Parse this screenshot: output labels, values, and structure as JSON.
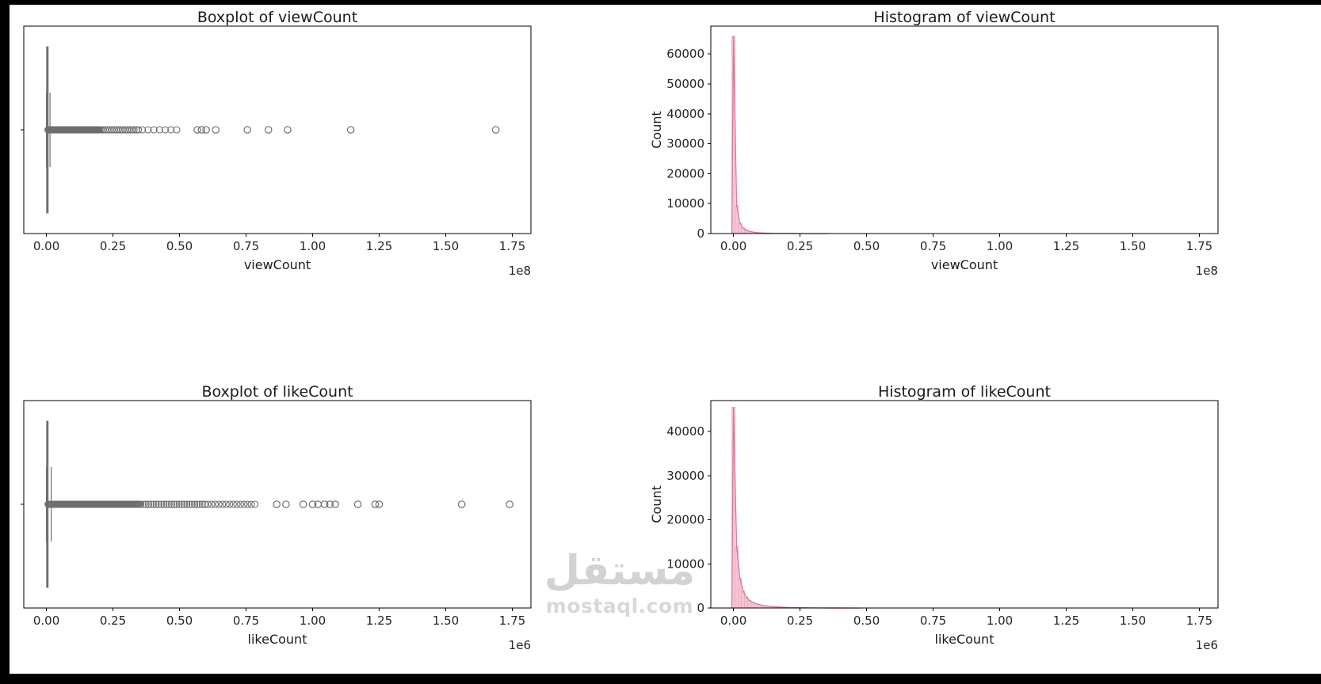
{
  "figure": {
    "watermark": {
      "logo_text": "مستقل",
      "site_text": "mostaql.com"
    }
  },
  "colors": {
    "hist_fill": "#f3bcca",
    "hist_edge": "#eaa6ba",
    "kde_line": "#d4708c",
    "box_color": "#6e6e6e",
    "axis_color": "#000000",
    "text_color": "#262626"
  },
  "chart_data": [
    {
      "id": "boxplot-viewcount",
      "type": "boxplot_h",
      "title": "Boxplot of viewCount",
      "xlabel": "viewCount",
      "offset_text": "1e8",
      "xlim": [
        -0.085,
        1.82
      ],
      "xticks": [
        0,
        0.25,
        0.5,
        0.75,
        1.0,
        1.25,
        1.5,
        1.75
      ],
      "xtick_labels": [
        "0.00",
        "0.25",
        "0.50",
        "0.75",
        "1.00",
        "1.25",
        "1.50",
        "1.75"
      ],
      "grid": false,
      "box": {
        "whisker_low": 0.0002,
        "q1": 0.0012,
        "median": 0.0032,
        "q3": 0.0062,
        "whisker_high": 0.0135
      },
      "outlier_bands": [
        {
          "from": 0.005,
          "to": 0.2,
          "count": 90
        },
        {
          "from": 0.2,
          "to": 0.35,
          "count": 18
        },
        {
          "from": 0.35,
          "to": 0.5,
          "count": 7
        }
      ],
      "outliers": [
        0.567,
        0.583,
        0.6,
        0.636,
        0.755,
        0.834,
        0.906,
        1.143,
        1.688
      ]
    },
    {
      "id": "histogram-viewcount",
      "type": "histogram",
      "title": "Histogram of viewCount",
      "xlabel": "viewCount",
      "ylabel": "Count",
      "offset_text": "1e8",
      "xlim": [
        -0.085,
        1.82
      ],
      "ylim": [
        0,
        69300
      ],
      "xticks": [
        0,
        0.25,
        0.5,
        0.75,
        1.0,
        1.25,
        1.5,
        1.75
      ],
      "xtick_labels": [
        "0.00",
        "0.25",
        "0.50",
        "0.75",
        "1.00",
        "1.25",
        "1.50",
        "1.75"
      ],
      "yticks": [
        0,
        10000,
        20000,
        30000,
        40000,
        50000,
        60000
      ],
      "ytick_labels": [
        "0",
        "10000",
        "20000",
        "30000",
        "40000",
        "50000",
        "60000"
      ],
      "grid": false,
      "legend": false,
      "bins": {
        "start": -0.006,
        "width": 0.012,
        "counts": [
          66000,
          9500,
          3600,
          1900,
          1150,
          760,
          520,
          370,
          270,
          200,
          150,
          115,
          88,
          68,
          52,
          40,
          31,
          24,
          18,
          14,
          10,
          8,
          6,
          4,
          3,
          2,
          2,
          1,
          1,
          1
        ]
      },
      "peak_count": 66000
    },
    {
      "id": "boxplot-likecount",
      "type": "boxplot_h",
      "title": "Boxplot of likeCount",
      "xlabel": "likeCount",
      "offset_text": "1e6",
      "xlim": [
        -0.085,
        1.82
      ],
      "xticks": [
        0,
        0.25,
        0.5,
        0.75,
        1.0,
        1.25,
        1.5,
        1.75
      ],
      "xtick_labels": [
        "0.00",
        "0.25",
        "0.50",
        "0.75",
        "1.00",
        "1.25",
        "1.50",
        "1.75"
      ],
      "grid": false,
      "box": {
        "whisker_low": 0.0002,
        "q1": 0.0012,
        "median": 0.003,
        "q3": 0.006,
        "whisker_high": 0.018
      },
      "outlier_bands": [
        {
          "from": 0.005,
          "to": 0.35,
          "count": 110
        },
        {
          "from": 0.35,
          "to": 0.6,
          "count": 26
        },
        {
          "from": 0.6,
          "to": 0.79,
          "count": 14
        }
      ],
      "outliers": [
        0.865,
        0.9,
        0.965,
        1.0,
        1.02,
        1.045,
        1.065,
        1.085,
        1.17,
        1.235,
        1.25,
        1.56,
        1.74
      ]
    },
    {
      "id": "histogram-likecount",
      "type": "histogram",
      "title": "Histogram of likeCount",
      "xlabel": "likeCount",
      "ylabel": "Count",
      "offset_text": "1e6",
      "xlim": [
        -0.085,
        1.82
      ],
      "ylim": [
        0,
        47000
      ],
      "xticks": [
        0,
        0.25,
        0.5,
        0.75,
        1.0,
        1.25,
        1.5,
        1.75
      ],
      "xtick_labels": [
        "0.00",
        "0.25",
        "0.50",
        "0.75",
        "1.00",
        "1.25",
        "1.50",
        "1.75"
      ],
      "yticks": [
        0,
        10000,
        20000,
        30000,
        40000
      ],
      "ytick_labels": [
        "0",
        "10000",
        "20000",
        "30000",
        "40000"
      ],
      "grid": false,
      "legend": false,
      "bins": {
        "start": -0.006,
        "width": 0.012,
        "counts": [
          45500,
          14000,
          6800,
          3900,
          2500,
          1750,
          1300,
          1000,
          780,
          620,
          500,
          410,
          340,
          280,
          235,
          195,
          165,
          140,
          118,
          100,
          85,
          72,
          60,
          50,
          42,
          35,
          29,
          24,
          20,
          16,
          13,
          11,
          9,
          7,
          6,
          5,
          4,
          3,
          3,
          2
        ]
      },
      "peak_count": 45500
    }
  ]
}
